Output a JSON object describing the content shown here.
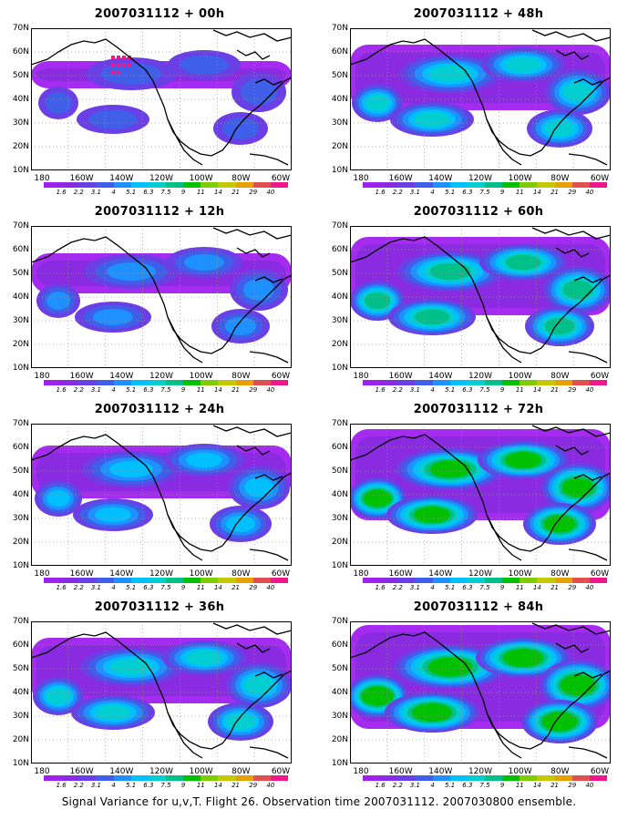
{
  "caption": "Signal Variance for u,v,T. Flight 26. Observation time 2007031112. 2007030800 ensemble.",
  "lat_labels": [
    "70N",
    "60N",
    "50N",
    "40N",
    "30N",
    "20N",
    "10N"
  ],
  "lon_labels": [
    "180",
    "160W",
    "140W",
    "120W",
    "100W",
    "80W",
    "60W"
  ],
  "colorbar": {
    "labels": [
      "1.6",
      "2.2",
      "3.1",
      "4",
      "5.1",
      "6.3",
      "7.5",
      "9",
      "11",
      "14",
      "21",
      "29",
      "40"
    ],
    "colors": [
      "#a020f0",
      "#8a2be2",
      "#6a3fe6",
      "#3f5fe8",
      "#1e90ff",
      "#00bfff",
      "#00ced1",
      "#00c08a",
      "#00c000",
      "#7fcc00",
      "#c8c800",
      "#e8a000",
      "#e05050",
      "#f0168c"
    ]
  },
  "panels": [
    {
      "title": "2007031112 + 00h",
      "level": 0
    },
    {
      "title": "2007031112 + 48h",
      "level": 3
    },
    {
      "title": "2007031112 + 12h",
      "level": 1
    },
    {
      "title": "2007031112 + 60h",
      "level": 4
    },
    {
      "title": "2007031112 + 24h",
      "level": 2
    },
    {
      "title": "2007031112 + 72h",
      "level": 5
    },
    {
      "title": "2007031112 + 36h",
      "level": 3
    },
    {
      "title": "2007031112 + 84h",
      "level": 6
    }
  ]
}
